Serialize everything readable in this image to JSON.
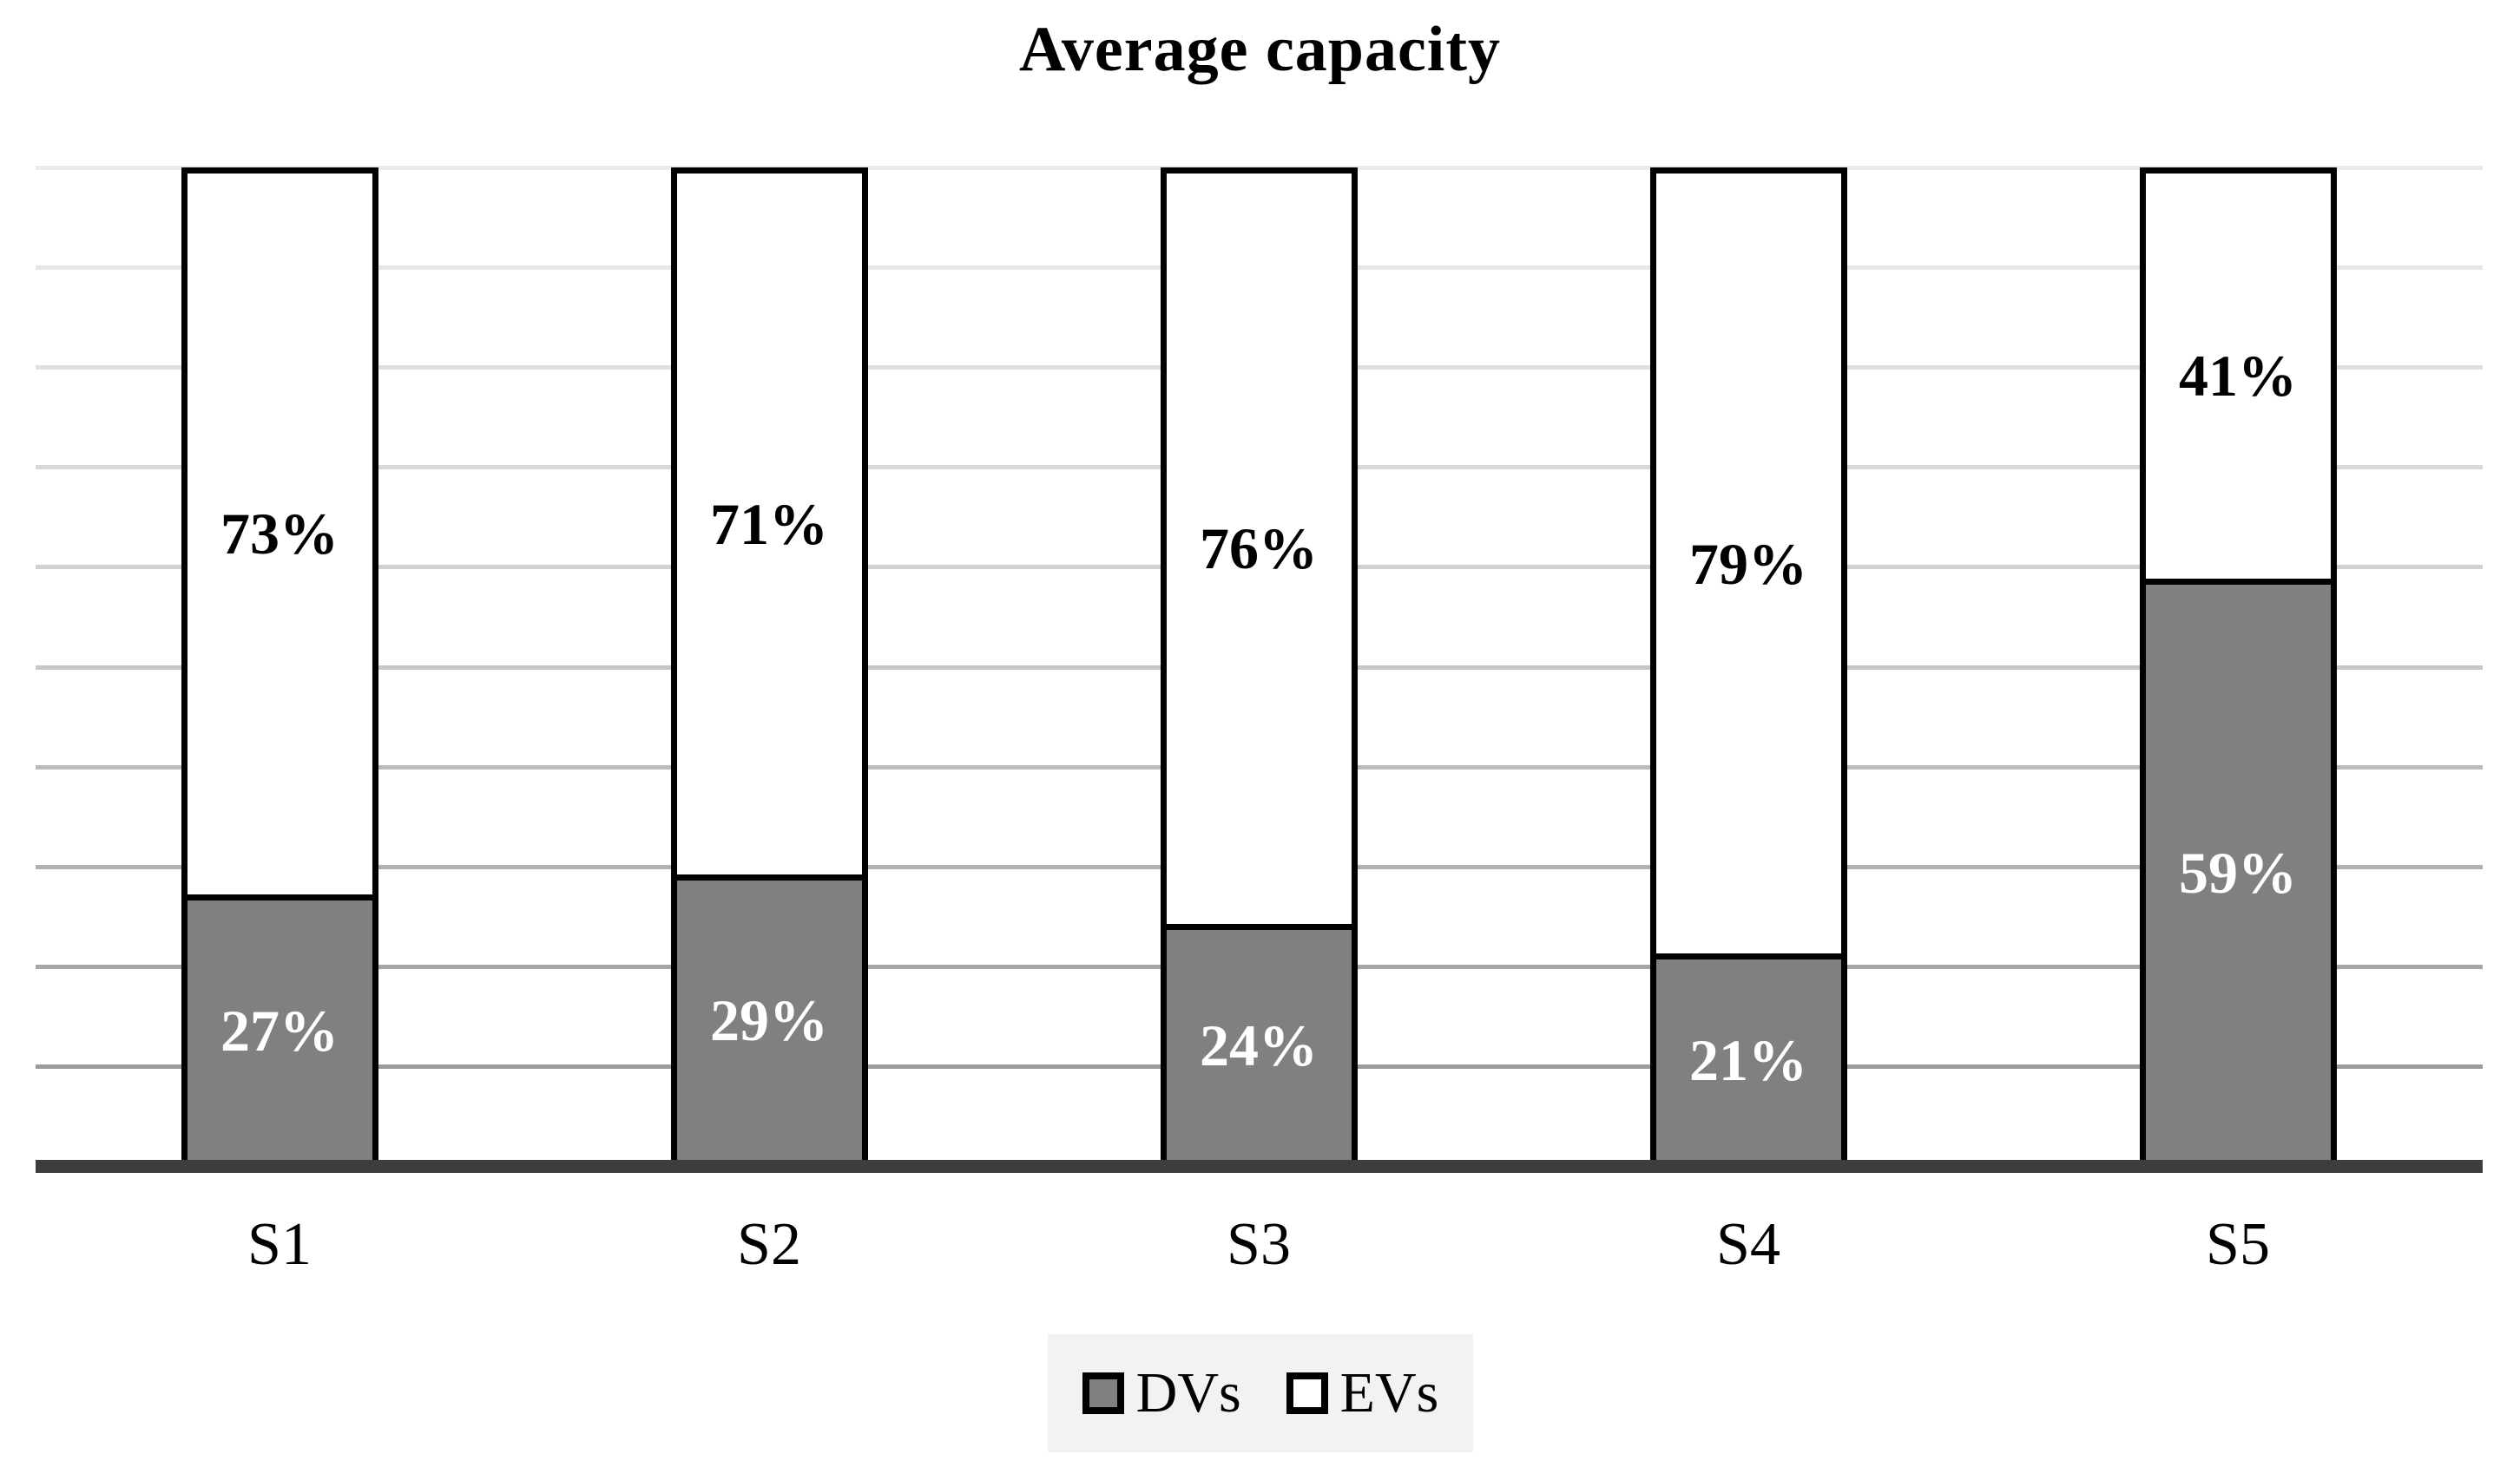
{
  "title": "Average capacity",
  "chart_data": {
    "type": "bar",
    "stacked": true,
    "orientation": "vertical",
    "title": "Average capacity",
    "categories": [
      "S1",
      "S2",
      "S3",
      "S4",
      "S5"
    ],
    "series": [
      {
        "name": "DVs",
        "fill": "#808080",
        "text_color": "#ffffff",
        "values": [
          27,
          29,
          24,
          21,
          59
        ],
        "labels": [
          "27%",
          "29%",
          "24%",
          "21%",
          "59%"
        ]
      },
      {
        "name": "EVs",
        "fill": "#ffffff",
        "text_color": "#000000",
        "values": [
          73,
          71,
          76,
          79,
          41
        ],
        "labels": [
          "73%",
          "71%",
          "76%",
          "79%",
          "41%"
        ]
      }
    ],
    "unit": "%",
    "ylim": [
      0,
      100
    ],
    "grid_on": true,
    "gridlines": {
      "step_percent": 10,
      "colors_top_to_bottom": [
        "#ebebeb",
        "#e6e6e6",
        "#e0e0e0",
        "#d9d9d9",
        "#d1d1d1",
        "#c7c7c7",
        "#bcbcbc",
        "#b1b1b1",
        "#a6a6a6",
        "#9b9b9b"
      ]
    },
    "axis_color": "#3d3d3d",
    "bar_border_color": "#000000",
    "legend": {
      "position": "bottom",
      "background": "#f2f2f2",
      "items": [
        {
          "label": "DVs",
          "swatch": "#808080"
        },
        {
          "label": "EVs",
          "swatch": "#ffffff"
        }
      ]
    }
  }
}
